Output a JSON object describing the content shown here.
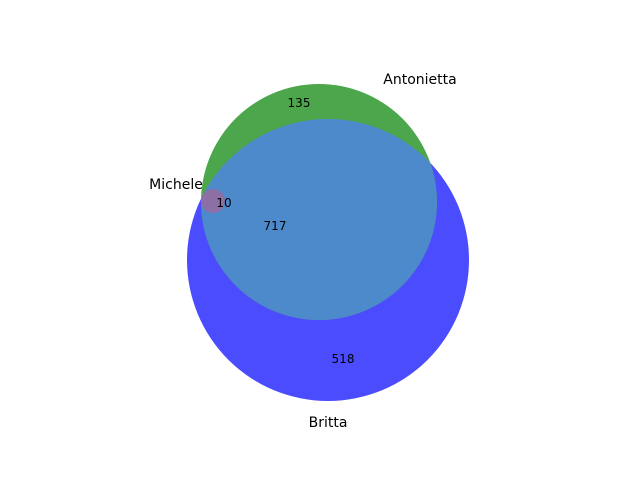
{
  "diagram": {
    "type": "venn3",
    "sets": [
      {
        "id": "britta",
        "label": "Britta",
        "color": "#4c4cff"
      },
      {
        "id": "antonietta",
        "label": "Antonietta",
        "color": "#4ca64c"
      },
      {
        "id": "michele",
        "label": "Michele",
        "color": "#c07c9a"
      }
    ],
    "overlap_colors": {
      "britta_antonietta": "#4c8acb",
      "britta_antonietta_michele": "#8c6fa4"
    },
    "regions": [
      {
        "sets": [
          "antonietta"
        ],
        "value": "135"
      },
      {
        "sets": [
          "britta",
          "antonietta",
          "michele"
        ],
        "value": "10"
      },
      {
        "sets": [
          "britta",
          "antonietta"
        ],
        "value": "717"
      },
      {
        "sets": [
          "britta"
        ],
        "value": "518"
      }
    ]
  }
}
